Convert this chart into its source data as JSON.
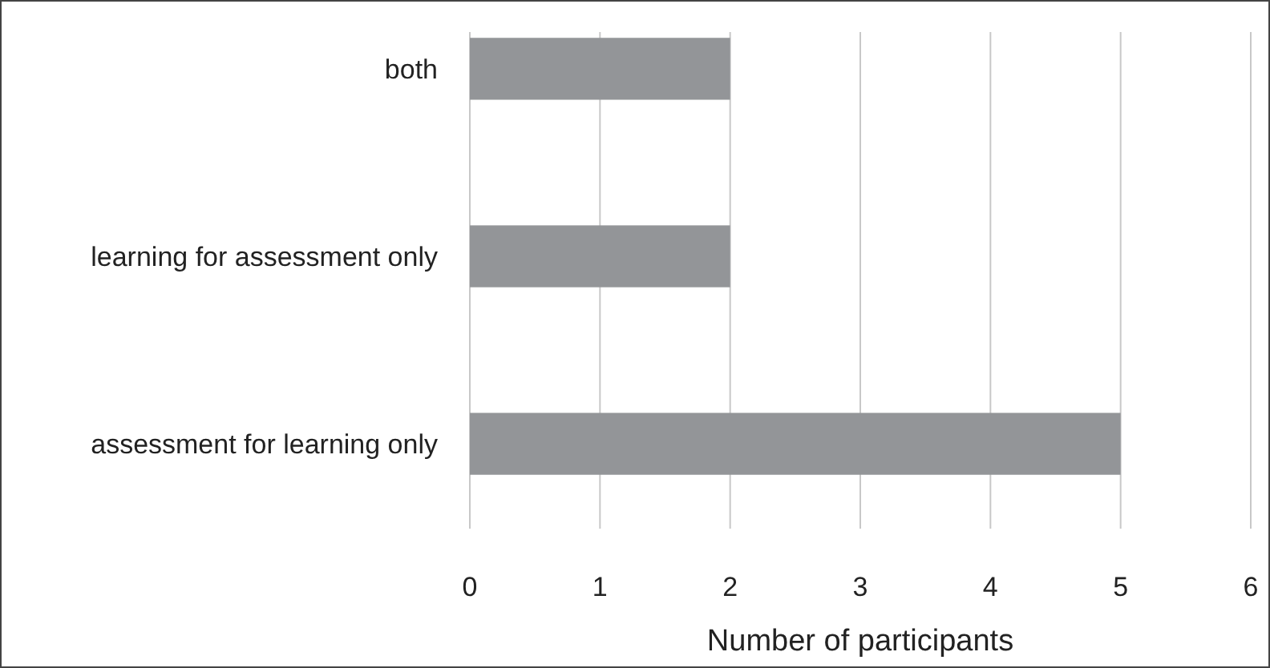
{
  "chart_data": {
    "type": "bar",
    "orientation": "horizontal",
    "xlabel": "Number of participants",
    "categories": [
      "both",
      "learning for assessment only",
      "assessment for learning only"
    ],
    "values": [
      2,
      2,
      5
    ],
    "color": "#939598",
    "xlim": [
      0,
      6
    ],
    "xticks": [
      0,
      1,
      2,
      3,
      4,
      5,
      6
    ],
    "grid": "x"
  }
}
